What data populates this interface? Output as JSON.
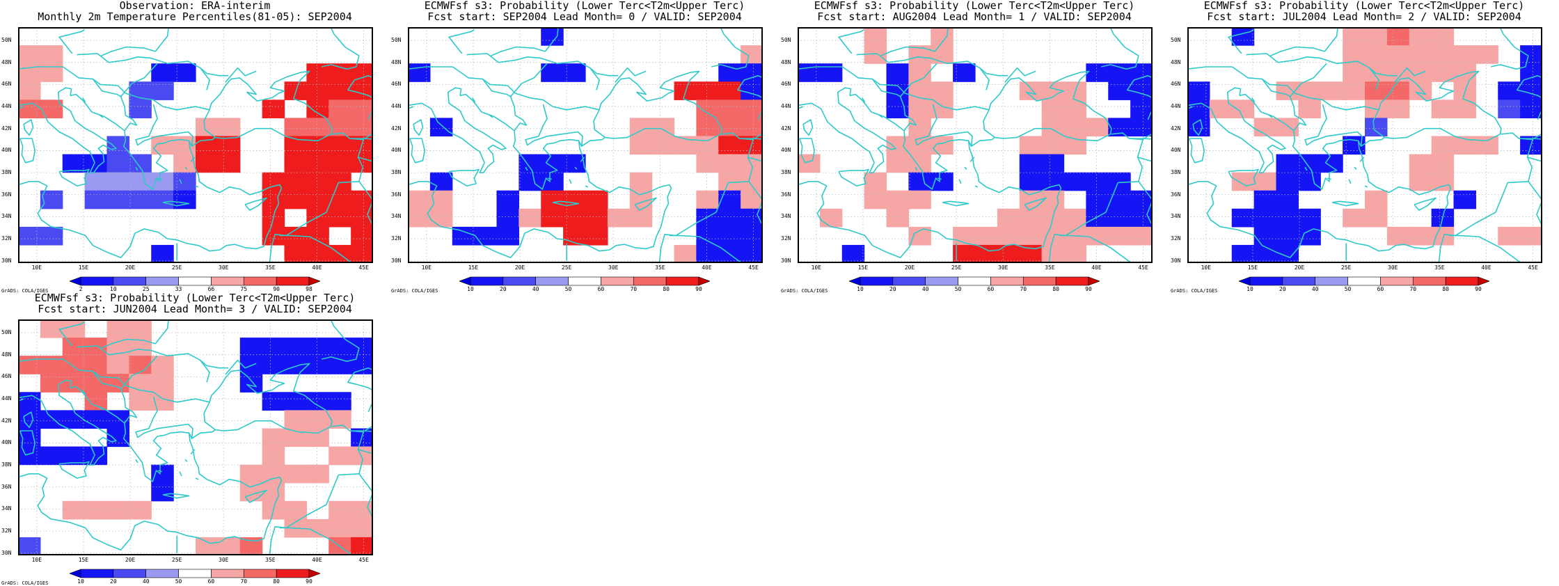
{
  "colors": {
    "blue3": "#1414f5",
    "blue2": "#4a4af2",
    "blue1": "#9a9af0",
    "white": "#ffffff",
    "red1": "#f7a6a6",
    "red2": "#f46868",
    "red3": "#ee1c1c",
    "coast": "#2ec9c9"
  },
  "axes": {
    "lat_labels": [
      "50N",
      "48N",
      "46N",
      "44N",
      "42N",
      "40N",
      "38N",
      "36N",
      "34N",
      "32N",
      "30N"
    ],
    "lon_labels": [
      "10E",
      "15E",
      "20E",
      "25E",
      "30E",
      "35E",
      "40E",
      "45E"
    ]
  },
  "footer": "GrADS: COLA/IGES",
  "panels": [
    {
      "title1": "Observation: ERA-interim",
      "title2": "Monthly 2m Temperature Percentiles(81-05): SEP2004",
      "colorbar": [
        "2",
        "10",
        "25",
        "33",
        "66",
        "75",
        "90",
        "98"
      ],
      "grid": [
        "0000000000000000",
        "aa000000000000dd",
        "aa00003300000ccc",
        "a00002200000cccc",
        "bb000200000c0cbb",
        "00000000aa00bbbb",
        "000020aacc00cccc",
        "0033220acc00cccc",
        "00011112000cccc0",
        "02022223000ccccc",
        "00000000000c0ccc",
        "22000000000ccc0c",
        "000000300000cccc"
      ]
    },
    {
      "title1": "ECMWFsf s3: Probability (Lower Terc<T2m<Upper Terc)",
      "title2": "Fcst start: SEP2004  Lead Month= 0 / VALID: SEP2004",
      "colorbar": [
        "10",
        "20",
        "40",
        "50",
        "60",
        "70",
        "80",
        "90"
      ],
      "grid": [
        "0000003000000000",
        "000000000000000a",
        "3000003300000033",
        "000000000000ccc3",
        "0000000000000bbb",
        "0300000000aa0bbb",
        "0000000000aaaacc",
        "0000033300000aaa",
        "0300033000a000aa",
        "aa0030ccc0a00a3a",
        "aa003acccaa00333",
        "0033300cc0000333",
        "000000000000a333"
      ]
    },
    {
      "title1": "ECMWFsf s3: Probability (Lower Terc<T2m<Upper Terc)",
      "title2": "Fcst start: AUG2004  Lead Month= 1 / VALID: SEP2004",
      "colorbar": [
        "10",
        "20",
        "40",
        "50",
        "60",
        "70",
        "80",
        "90"
      ],
      "grid": [
        "000a00a000000000",
        "000a0aa000000000",
        "33003a0300000333",
        "00003aa000aaa033",
        "00003aa0000aa003",
        "00000a00000aaa33",
        "0000aaa000aaa000",
        "a000aa0000330000",
        "000a033000333330",
        "000aaa0000aa0333",
        "0a00a0000aaaa333",
        "00000a0aaaaaaaaa",
        "0030000ccccaa000"
      ]
    },
    {
      "title1": "ECMWFsf s3: Probability (Lower Terc<T2m<Upper Terc)",
      "title2": "Fcst start: JUL2004  Lead Month= 2 / VALID: SEP2004",
      "colorbar": [
        "10",
        "20",
        "40",
        "50",
        "60",
        "70",
        "80",
        "90"
      ],
      "grid": [
        "0030000aabaa0000",
        "0000000aaaaaaa03",
        "0000000aaaaaa003",
        "3000aaaabba0a033",
        "3aa00a00aa0aa023",
        "300aa00020000000",
        "00000003000aaa03",
        "0000333000aa0000",
        "00aa330000aa0000",
        "00033000a0003000",
        "0033330aa0030000",
        "000333000aaa00aa",
        "0033300000000000"
      ]
    },
    {
      "title1": "ECMWFsf s3: Probability (Lower Terc<T2m<Upper Terc)",
      "title2": "Fcst start: JUN2004  Lead Month= 3 / VALID: SEP2004",
      "colorbar": [
        "10",
        "20",
        "40",
        "50",
        "60",
        "70",
        "80",
        "90"
      ],
      "grid": [
        "0aa0aa0000000000",
        "00bbaa0000333333",
        "bbbbaba000333333",
        "0bbbbaa000300000",
        "300b0aa000033330",
        "333330000000aaa0",
        "30003000000aaa03",
        "33330000000a00aa",
        "0000003000aaaa00",
        "0000003000aa0000",
        "00aaaa00000aa0aa",
        "000000000000aaaa",
        "20000000aab000bc"
      ]
    }
  ]
}
